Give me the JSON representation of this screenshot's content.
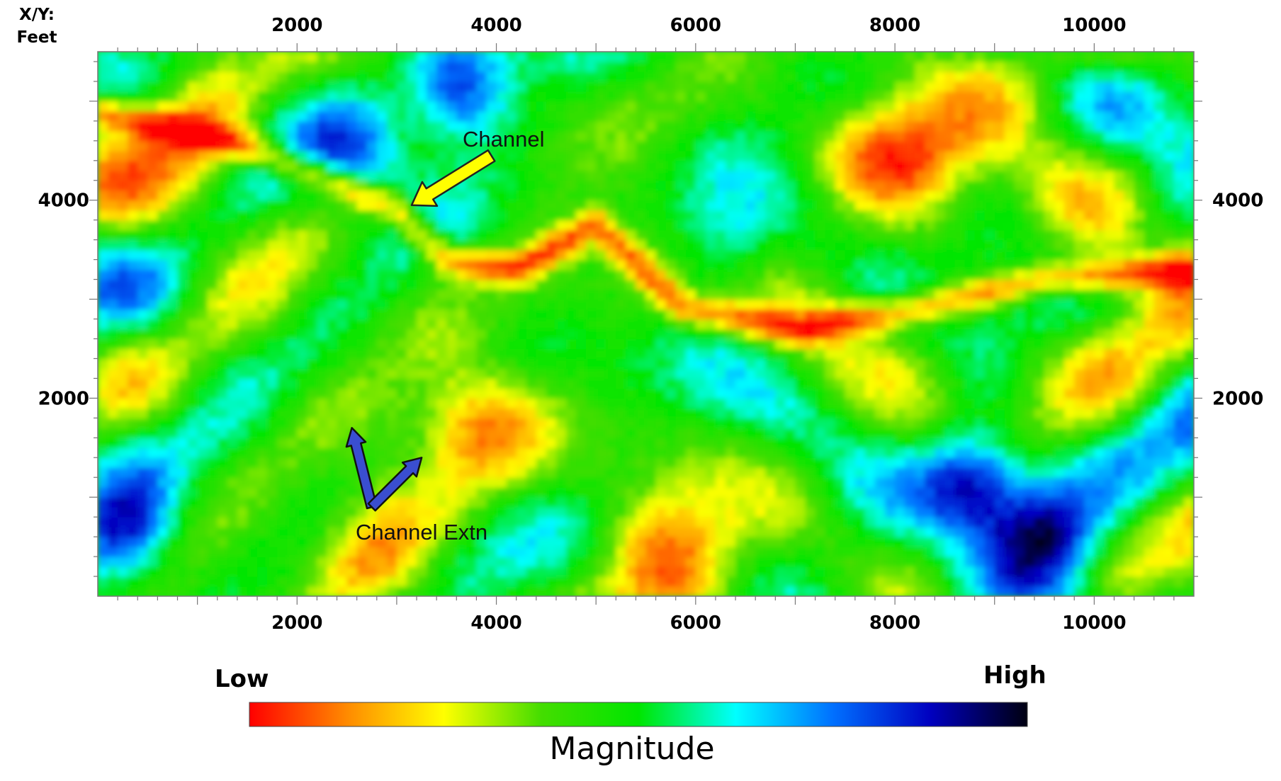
{
  "chart_data": {
    "type": "heatmap",
    "title": "",
    "xlabel": "",
    "ylabel": "",
    "corner_label": [
      "X/Y:",
      "Feet"
    ],
    "xlim": [
      0,
      11000
    ],
    "ylim": [
      0,
      5500
    ],
    "x_ticks_top": [
      "2000",
      "4000",
      "6000",
      "8000",
      "10000"
    ],
    "x_ticks_bottom": [
      "2000",
      "4000",
      "6000",
      "8000",
      "10000"
    ],
    "y_ticks_left": [
      "4000",
      "2000"
    ],
    "y_ticks_right": [
      "4000",
      "2000"
    ],
    "x_tick_values": [
      2000,
      4000,
      6000,
      8000,
      10000
    ],
    "y_tick_values": [
      4000,
      2000
    ],
    "minor_tick_step": 200,
    "grid": false,
    "colorscale": {
      "title": "Magnitude",
      "low_label": "Low",
      "high_label": "High",
      "colors": [
        "#ff0000",
        "#ff8a00",
        "#ffff00",
        "#44dd00",
        "#00e600",
        "#00ffff",
        "#0070ff",
        "#0000c0",
        "#000010"
      ]
    },
    "annotations": [
      {
        "text": "Channel",
        "arrow_color": "#ffff00",
        "arrow_from": [
          3950,
          4450
        ],
        "arrow_to": [
          3150,
          3950
        ]
      },
      {
        "text": "Channel Extn",
        "arrow_color": "#3a4ed0",
        "arrow_from": [
          2750,
          900
        ],
        "arrow_to": [
          2550,
          1700
        ]
      },
      {
        "text": "",
        "arrow_color": "#3a4ed0",
        "arrow_from": [
          2750,
          900
        ],
        "arrow_to": [
          3250,
          1400
        ]
      }
    ],
    "anomalies": {
      "high": [
        {
          "x": 8800,
          "y": 1150,
          "strength": 1.0
        },
        {
          "x": 9500,
          "y": 600,
          "strength": 0.9
        },
        {
          "x": 3600,
          "y": 5050,
          "strength": 0.95
        },
        {
          "x": 250,
          "y": 600,
          "strength": 0.9
        },
        {
          "x": 2600,
          "y": 4500,
          "strength": 0.6
        },
        {
          "x": 6300,
          "y": 3500,
          "strength": 0.5
        }
      ],
      "low": [
        {
          "x": 2800,
          "y": 500,
          "strength": 0.8
        },
        {
          "x": 5700,
          "y": 500,
          "strength": 0.8
        },
        {
          "x": 3800,
          "y": 1800,
          "strength": 0.8
        },
        {
          "x": 1000,
          "y": 4800,
          "strength": 0.7
        },
        {
          "x": 8200,
          "y": 4500,
          "strength": 0.7
        },
        {
          "x": 10000,
          "y": 3400,
          "strength": 0.6
        },
        {
          "x": 7700,
          "y": 4600,
          "strength": 0.6
        }
      ]
    },
    "channel_trace": [
      [
        0,
        4900
      ],
      [
        1500,
        4550
      ],
      [
        3000,
        3900
      ],
      [
        3500,
        3400
      ],
      [
        4200,
        3300
      ],
      [
        5000,
        3750
      ],
      [
        5900,
        2900
      ],
      [
        7000,
        2700
      ],
      [
        8200,
        2900
      ],
      [
        9500,
        3200
      ],
      [
        11000,
        3300
      ]
    ]
  }
}
